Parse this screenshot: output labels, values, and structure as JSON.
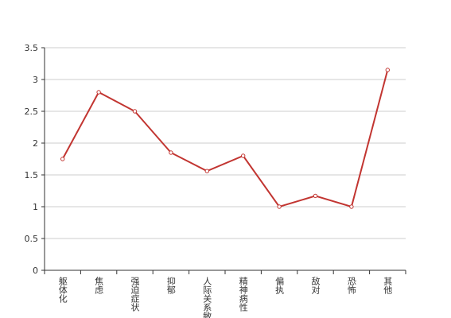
{
  "chart_data": {
    "type": "line",
    "categories": [
      "躯体化",
      "焦虑",
      "强迫症状",
      "抑郁",
      "人际关系敏感",
      "精神病性",
      "偏执",
      "敌对",
      "恐怖",
      "其他"
    ],
    "values": [
      1.75,
      2.8,
      2.5,
      1.85,
      1.56,
      1.8,
      1.0,
      1.17,
      1.0,
      3.15
    ],
    "color": "#c23531",
    "ylim": [
      0,
      3.5
    ],
    "yticks": [
      0,
      0.5,
      1,
      1.5,
      2,
      2.5,
      3,
      3.5
    ],
    "grid": true
  }
}
